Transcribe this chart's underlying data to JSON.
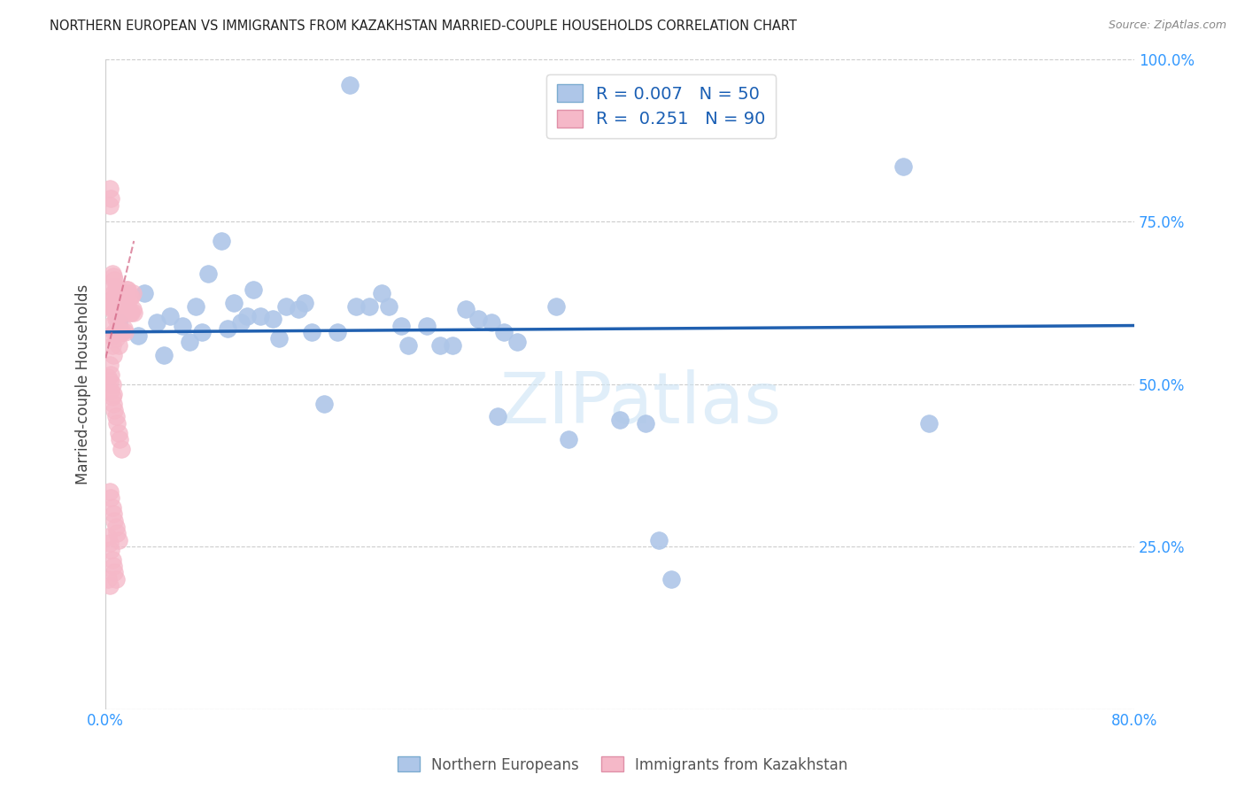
{
  "title": "NORTHERN EUROPEAN VS IMMIGRANTS FROM KAZAKHSTAN MARRIED-COUPLE HOUSEHOLDS CORRELATION CHART",
  "source": "Source: ZipAtlas.com",
  "ylabel": "Married-couple Households",
  "watermark": "ZIPatlas",
  "xlim": [
    0.0,
    0.8
  ],
  "ylim": [
    0.0,
    1.0
  ],
  "xticks": [
    0.0,
    0.1,
    0.2,
    0.3,
    0.4,
    0.5,
    0.6,
    0.7,
    0.8
  ],
  "xticklabels": [
    "0.0%",
    "",
    "",
    "",
    "",
    "",
    "",
    "",
    "80.0%"
  ],
  "yticks": [
    0.0,
    0.25,
    0.5,
    0.75,
    1.0
  ],
  "yticklabels_right": [
    "",
    "25.0%",
    "50.0%",
    "75.0%",
    "100.0%"
  ],
  "blue_color": "#aec6e8",
  "pink_color": "#f5b8c8",
  "blue_line_color": "#2060b0",
  "pink_line_color": "#d06080",
  "blue_scatter_x": [
    0.19,
    0.01,
    0.025,
    0.03,
    0.04,
    0.045,
    0.05,
    0.06,
    0.065,
    0.07,
    0.075,
    0.08,
    0.09,
    0.095,
    0.1,
    0.105,
    0.11,
    0.115,
    0.12,
    0.13,
    0.135,
    0.14,
    0.15,
    0.155,
    0.16,
    0.17,
    0.18,
    0.195,
    0.205,
    0.215,
    0.22,
    0.23,
    0.235,
    0.25,
    0.26,
    0.28,
    0.29,
    0.3,
    0.305,
    0.32,
    0.35,
    0.36,
    0.4,
    0.42,
    0.43,
    0.44,
    0.62,
    0.64,
    0.27,
    0.31
  ],
  "blue_scatter_y": [
    0.96,
    0.595,
    0.575,
    0.64,
    0.595,
    0.545,
    0.605,
    0.59,
    0.565,
    0.62,
    0.58,
    0.67,
    0.72,
    0.585,
    0.625,
    0.595,
    0.605,
    0.645,
    0.605,
    0.6,
    0.57,
    0.62,
    0.615,
    0.625,
    0.58,
    0.47,
    0.58,
    0.62,
    0.62,
    0.64,
    0.62,
    0.59,
    0.56,
    0.59,
    0.56,
    0.615,
    0.6,
    0.595,
    0.45,
    0.565,
    0.62,
    0.415,
    0.445,
    0.44,
    0.26,
    0.2,
    0.835,
    0.44,
    0.56,
    0.58
  ],
  "pink_scatter_x": [
    0.002,
    0.003,
    0.003,
    0.004,
    0.004,
    0.005,
    0.005,
    0.005,
    0.006,
    0.006,
    0.006,
    0.007,
    0.007,
    0.007,
    0.007,
    0.008,
    0.008,
    0.008,
    0.008,
    0.009,
    0.009,
    0.009,
    0.01,
    0.01,
    0.01,
    0.01,
    0.011,
    0.011,
    0.011,
    0.012,
    0.012,
    0.012,
    0.013,
    0.013,
    0.013,
    0.014,
    0.014,
    0.014,
    0.015,
    0.015,
    0.015,
    0.016,
    0.016,
    0.017,
    0.017,
    0.018,
    0.018,
    0.019,
    0.019,
    0.02,
    0.02,
    0.021,
    0.021,
    0.022,
    0.002,
    0.003,
    0.004,
    0.005,
    0.006,
    0.007,
    0.008,
    0.009,
    0.01,
    0.011,
    0.012,
    0.002,
    0.003,
    0.004,
    0.005,
    0.006,
    0.007,
    0.008,
    0.003,
    0.004,
    0.005,
    0.006,
    0.007,
    0.008,
    0.009,
    0.01,
    0.003,
    0.004,
    0.005,
    0.006,
    0.003,
    0.004,
    0.005,
    0.006,
    0.002,
    0.003
  ],
  "pink_scatter_y": [
    0.62,
    0.8,
    0.775,
    0.62,
    0.785,
    0.67,
    0.65,
    0.63,
    0.665,
    0.64,
    0.62,
    0.66,
    0.635,
    0.61,
    0.58,
    0.65,
    0.625,
    0.6,
    0.57,
    0.635,
    0.605,
    0.58,
    0.645,
    0.615,
    0.59,
    0.56,
    0.635,
    0.61,
    0.58,
    0.64,
    0.61,
    0.58,
    0.635,
    0.61,
    0.58,
    0.64,
    0.615,
    0.585,
    0.635,
    0.61,
    0.58,
    0.645,
    0.615,
    0.645,
    0.615,
    0.64,
    0.615,
    0.635,
    0.61,
    0.635,
    0.61,
    0.64,
    0.615,
    0.61,
    0.51,
    0.505,
    0.49,
    0.48,
    0.47,
    0.46,
    0.45,
    0.44,
    0.425,
    0.415,
    0.4,
    0.265,
    0.255,
    0.245,
    0.23,
    0.22,
    0.21,
    0.2,
    0.335,
    0.325,
    0.31,
    0.3,
    0.29,
    0.28,
    0.27,
    0.26,
    0.59,
    0.575,
    0.56,
    0.545,
    0.53,
    0.515,
    0.5,
    0.485,
    0.2,
    0.19
  ],
  "blue_trend_x": [
    0.0,
    0.8
  ],
  "blue_trend_y": [
    0.58,
    0.59
  ],
  "pink_trend_x": [
    0.0,
    0.022
  ],
  "pink_trend_y": [
    0.54,
    0.72
  ]
}
